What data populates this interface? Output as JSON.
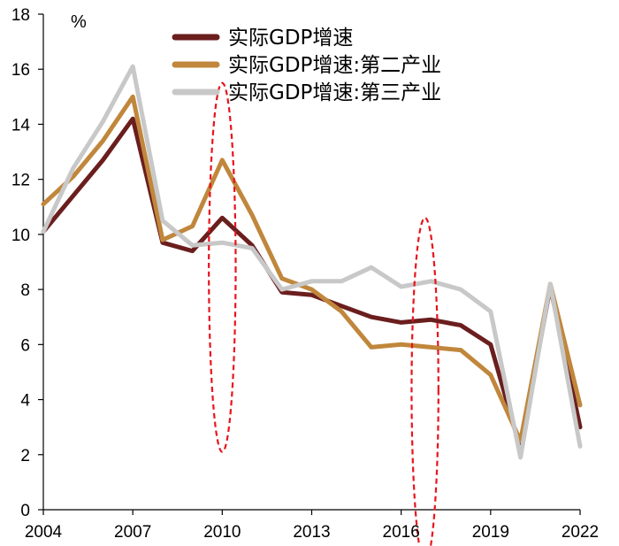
{
  "chart_data": {
    "type": "line",
    "title": "",
    "xlabel": "",
    "ylabel": "%",
    "ylim": [
      0,
      18
    ],
    "xlim": [
      2004,
      2022
    ],
    "yticks": [
      "0",
      "2",
      "4",
      "6",
      "8",
      "10",
      "12",
      "14",
      "16",
      "18"
    ],
    "xticks": [
      "2004",
      "2007",
      "2010",
      "2013",
      "2016",
      "2019",
      "2022"
    ],
    "grid": false,
    "legend_position": "top-center",
    "x": [
      2004,
      2005,
      2006,
      2007,
      2008,
      2009,
      2010,
      2011,
      2012,
      2013,
      2014,
      2015,
      2016,
      2017,
      2018,
      2019,
      2020,
      2021,
      2022
    ],
    "series": [
      {
        "name": "实际GDP增速",
        "color": "#6b1e1e",
        "values": [
          10.1,
          11.4,
          12.7,
          14.2,
          9.7,
          9.4,
          10.6,
          9.6,
          7.9,
          7.8,
          7.4,
          7.0,
          6.8,
          6.9,
          6.7,
          6.0,
          2.2,
          8.1,
          3.0
        ]
      },
      {
        "name": "实际GDP增速:第二产业",
        "color": "#c0873c",
        "values": [
          11.1,
          12.1,
          13.4,
          15.0,
          9.8,
          10.3,
          12.7,
          10.7,
          8.4,
          8.0,
          7.2,
          5.9,
          6.0,
          5.9,
          5.8,
          4.9,
          2.5,
          8.2,
          3.8
        ]
      },
      {
        "name": "实际GDP增速:第三产业",
        "color": "#c8c8c8",
        "values": [
          10.1,
          12.4,
          14.1,
          16.1,
          10.5,
          9.6,
          9.7,
          9.5,
          8.0,
          8.3,
          8.3,
          8.8,
          8.1,
          8.3,
          8.0,
          7.2,
          1.9,
          8.2,
          2.3
        ]
      }
    ],
    "annotations": [
      {
        "type": "dashed-ellipse",
        "color": "#e8141c",
        "x_center": 2010,
        "y_center": 8.8,
        "x_half_width": 0.45,
        "y_half_height": 6.7
      },
      {
        "type": "dashed-ellipse",
        "color": "#e8141c",
        "x_center": 2016.8,
        "y_center": 4.35,
        "x_half_width": 0.45,
        "y_half_height": 6.25
      }
    ]
  }
}
